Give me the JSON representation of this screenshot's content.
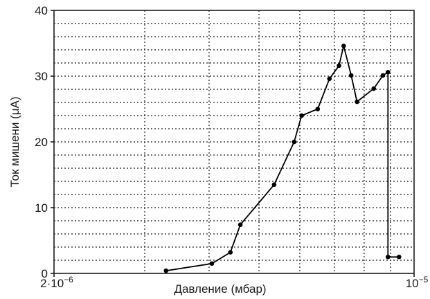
{
  "chart_data": {
    "type": "line",
    "title": "",
    "xlabel": "Давление  (мбар)",
    "ylabel": "Ток мишени (μA)",
    "x_scale": "log",
    "xlim": [
      2e-06,
      1e-05
    ],
    "ylim": [
      0,
      40
    ],
    "grid": true,
    "x_ticks": [
      {
        "value": 2e-06,
        "mantissa": "2·10",
        "exp": "−6"
      },
      {
        "value": 1e-05,
        "mantissa": "10",
        "exp": "−5"
      }
    ],
    "y_ticks": [
      0,
      10,
      20,
      30,
      40
    ],
    "series": [
      {
        "color": "#000000",
        "x": [
          3.3e-06,
          4.05e-06,
          4.4e-06,
          4.6e-06,
          5.35e-06,
          5.85e-06,
          6.05e-06,
          6.5e-06,
          6.85e-06,
          7.15e-06,
          7.3e-06,
          7.55e-06,
          7.75e-06,
          8.35e-06,
          8.7e-06,
          8.9e-06,
          8.9e-06,
          9.35e-06
        ],
        "y": [
          0.4,
          1.5,
          3.2,
          7.4,
          13.5,
          20.0,
          24.0,
          25.0,
          29.6,
          31.6,
          34.6,
          30.1,
          26.1,
          28.1,
          30.1,
          30.6,
          2.5,
          2.5
        ]
      }
    ]
  }
}
